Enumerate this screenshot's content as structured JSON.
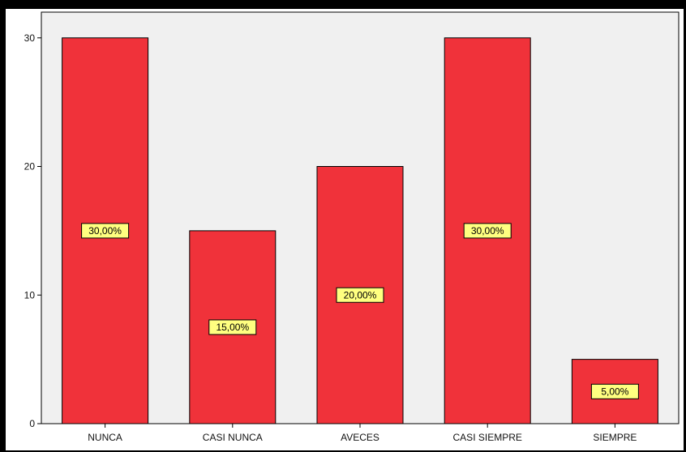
{
  "chart_data": {
    "type": "bar",
    "categories": [
      "NUNCA",
      "CASI NUNCA",
      "AVECES",
      "CASI SIEMPRE",
      "SIEMPRE"
    ],
    "values": [
      30,
      15,
      20,
      30,
      5
    ],
    "data_labels": [
      "30,00%",
      "15,00%",
      "20,00%",
      "30,00%",
      "5,00%"
    ],
    "yticks": [
      "0",
      "10",
      "20",
      "30"
    ],
    "ylim": [
      0,
      32
    ],
    "title": "",
    "xlabel": "",
    "ylabel": "",
    "grid": false,
    "colors": {
      "bar": "#f0323a",
      "bar_stroke": "#000000",
      "plot_bg": "#f0f0f0",
      "label_bg": "#ffff80"
    }
  }
}
